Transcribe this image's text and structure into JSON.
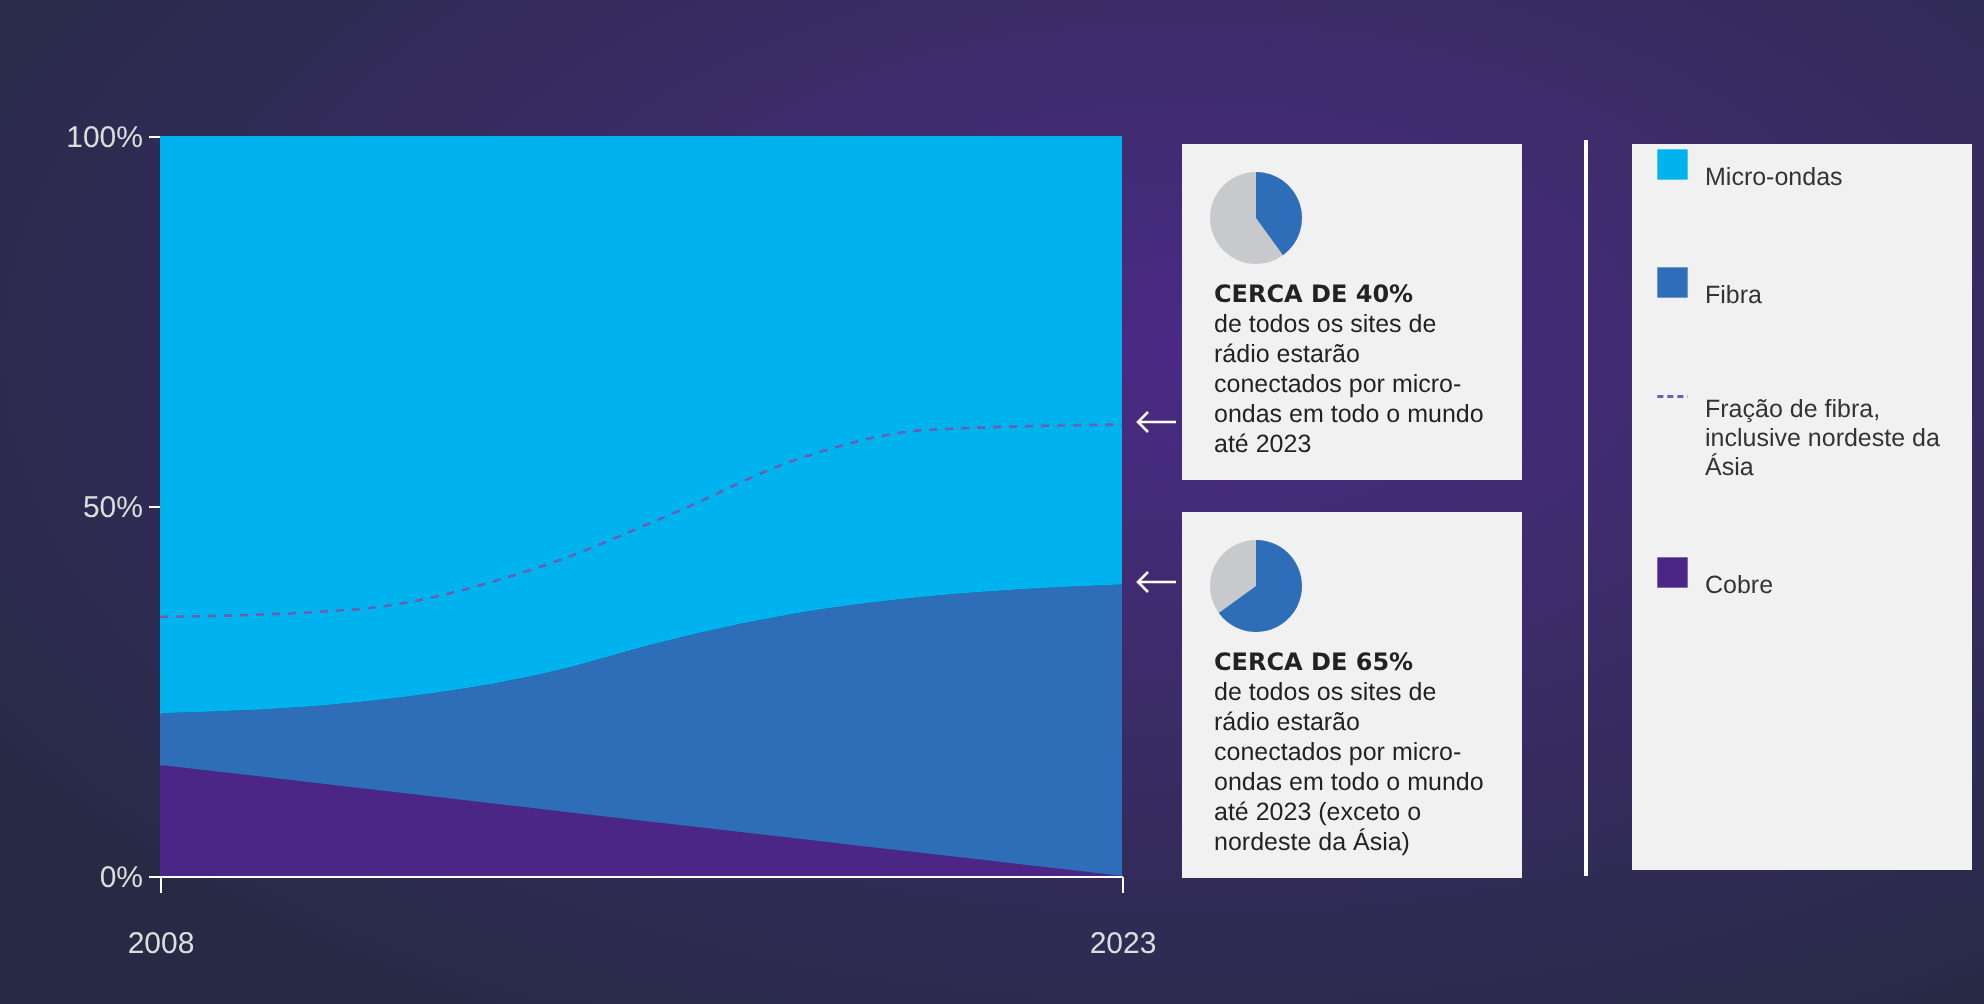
{
  "chart_data": {
    "type": "area",
    "stacked": true,
    "x": [
      2008,
      2011,
      2014,
      2016,
      2018,
      2020,
      2023
    ],
    "xlim": [
      2008,
      2023
    ],
    "xticks": [
      2008,
      2023
    ],
    "ylim": [
      0,
      100
    ],
    "yticks": [
      {
        "value": 0,
        "label": "0%"
      },
      {
        "value": 50,
        "label": "50%"
      },
      {
        "value": 100,
        "label": "100%"
      }
    ],
    "grid": false,
    "legend": "right",
    "series": [
      {
        "name": "Cobre",
        "color": "#4b2686",
        "values": [
          15,
          12,
          9,
          7,
          5,
          3,
          0
        ]
      },
      {
        "name": "Fração de fibra, inclusive nordeste da Ásia",
        "type": "line",
        "line_style": "dashed",
        "color": "#6d5cb8",
        "values": [
          35,
          36,
          42,
          49,
          56.5,
          60.3,
          61
        ]
      },
      {
        "name": "Fibra",
        "color": "#2e6eb8",
        "values": [
          7,
          11.4,
          18.4,
          25,
          30.6,
          34.8,
          39.4
        ]
      },
      {
        "name": "Micro-ondas",
        "color": "#00b2ed",
        "values": [
          78,
          76.6,
          72.6,
          68,
          64.4,
          62.2,
          60.6
        ]
      }
    ],
    "annotations": [
      "CERCA DE 40%",
      "de todos os sites de rádio estarão conectados por micro-ondas em todo o mundo até 2023",
      "CERCA DE 65%",
      "de todos os sites de rádio estarão conectados por micro-ondas em todo o mundo até 2023 (exceto o nordeste da Ásia)"
    ]
  }
}
